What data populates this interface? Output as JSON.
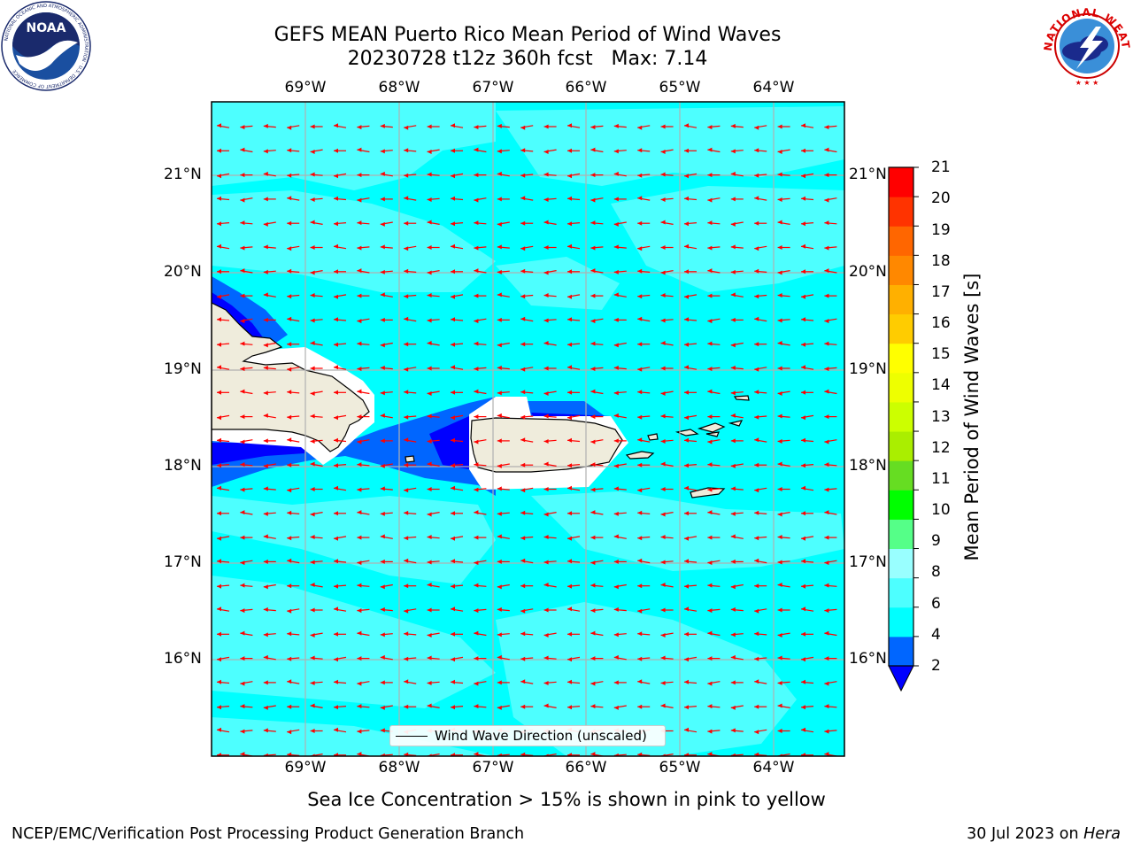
{
  "title": {
    "line1": "GEFS MEAN Puerto Rico Mean Period of Wind Waves",
    "line2": "20230728 t12z 360h fcst   Max: 7.14"
  },
  "map": {
    "lon_range": [
      -70.0,
      -63.25
    ],
    "lat_range": [
      15.0,
      21.75
    ],
    "lon_ticks": [
      -69,
      -68,
      -67,
      -66,
      -65,
      -64
    ],
    "lat_ticks": [
      21,
      20,
      19,
      18,
      17,
      16
    ],
    "lon_tick_labels": [
      "69°W",
      "68°W",
      "67°W",
      "66°W",
      "65°W",
      "64°W"
    ],
    "lat_tick_labels": [
      "21°N",
      "20°N",
      "19°N",
      "18°N",
      "17°N",
      "16°N"
    ],
    "grid": true,
    "wind_wave_direction": "westward",
    "ocean_color": "#00ffff",
    "land_color": "#efecdc"
  },
  "legend": {
    "label": "Wind Wave Direction (unscaled)",
    "placement": "bottom-center"
  },
  "colorbar": {
    "label": "Mean Period of Wind Waves [s]",
    "ticks": [
      "2",
      "4",
      "6",
      "8",
      "9",
      "10",
      "11",
      "12",
      "13",
      "14",
      "15",
      "16",
      "17",
      "18",
      "19",
      "20",
      "21"
    ],
    "colors": [
      "#0066ff",
      "#00ffff",
      "#4dffff",
      "#99ffff",
      "#55ff88",
      "#00ff00",
      "#66dd22",
      "#aaee00",
      "#ccff00",
      "#eeff00",
      "#ffff00",
      "#ffcc00",
      "#ffb000",
      "#ff8800",
      "#ff6600",
      "#ff3300",
      "#ff0000"
    ],
    "under_color": "#0000ff"
  },
  "sea_ice_note": "Sea Ice Concentration > 15% is shown in pink to yellow",
  "footer": {
    "left": "NCEP/EMC/Verification Post Processing Product Generation Branch",
    "date": "30 Jul 2023 on ",
    "host": "Hera"
  },
  "logos": {
    "noaa_text": "NOAA",
    "noaa_ring_text": "NATIONAL OCEANIC AND ATMOSPHERIC ADMINISTRATION · U.S. DEPARTMENT OF COMMERCE",
    "nws_ring_text": "NATIONAL WEATHER SERVICE"
  },
  "icons": {
    "noaa": "noaa-logo-icon",
    "nws": "nws-logo-icon"
  }
}
